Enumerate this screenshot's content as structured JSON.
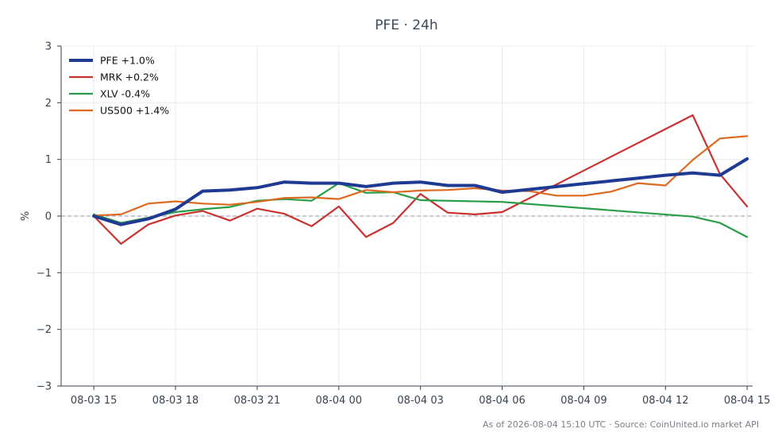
{
  "chart_data": {
    "type": "line",
    "title": "PFE · 24h",
    "ylabel": "%",
    "ylim": [
      -3,
      3
    ],
    "yticks": [
      3,
      2,
      1,
      0,
      -1,
      -2,
      -3
    ],
    "ytick_labels": [
      "3",
      "2",
      "1",
      "0",
      "−1",
      "−2",
      "−3"
    ],
    "xlim": [
      -1.2,
      24.2
    ],
    "xticks": [
      0,
      3,
      6,
      9,
      12,
      15,
      18,
      21,
      24
    ],
    "xtick_labels": [
      "08-03 15",
      "08-03 18",
      "08-03 21",
      "08-04 00",
      "08-04 03",
      "08-04 06",
      "08-04 09",
      "08-04 12",
      "08-04 15"
    ],
    "grid": true,
    "zero_line": true,
    "legend_position": "top-left",
    "footer": "As of 2026-08-04 15:10 UTC · Source: CoinUnited.io market API",
    "series": [
      {
        "name": "PFE +1.0%",
        "color": "#1f3a93",
        "width": 4,
        "x": [
          0,
          1,
          2,
          3,
          4,
          5,
          6,
          7,
          8,
          9,
          10,
          11,
          12,
          13,
          14,
          15,
          16,
          17,
          18,
          19,
          20,
          21,
          22,
          23,
          24
        ],
        "values": [
          0.0,
          -0.15,
          -0.05,
          0.12,
          0.44,
          0.46,
          0.5,
          0.6,
          0.58,
          0.58,
          0.52,
          0.58,
          0.6,
          0.54,
          0.54,
          0.42,
          0.47,
          0.52,
          0.57,
          0.62,
          0.67,
          0.72,
          0.76,
          0.72,
          1.01
        ]
      },
      {
        "name": "MRK +0.2%",
        "color": "#c8322f",
        "width": 2.2,
        "x": [
          0,
          1,
          2,
          3,
          4,
          5,
          6,
          7,
          8,
          9,
          10,
          11,
          12,
          13,
          14,
          15,
          22,
          23,
          24
        ],
        "values": [
          0.0,
          -0.49,
          -0.15,
          0.01,
          0.09,
          -0.08,
          0.13,
          0.04,
          -0.18,
          0.17,
          -0.37,
          -0.12,
          0.39,
          0.06,
          0.03,
          0.07,
          1.78,
          0.74,
          0.17
        ]
      },
      {
        "name": "XLV -0.4%",
        "color": "#2a9d48",
        "width": 2.2,
        "x": [
          0,
          1,
          2,
          3,
          4,
          5,
          6,
          7,
          8,
          9,
          10,
          11,
          12,
          15,
          22,
          23,
          24
        ],
        "values": [
          0.03,
          -0.12,
          -0.03,
          0.07,
          0.12,
          0.16,
          0.27,
          0.3,
          0.27,
          0.58,
          0.41,
          0.42,
          0.28,
          0.25,
          -0.01,
          -0.12,
          -0.37
        ]
      },
      {
        "name": "US500 +1.4%",
        "color": "#de6a21",
        "width": 2.2,
        "x": [
          0,
          1,
          2,
          3,
          4,
          5,
          6,
          7,
          8,
          9,
          10,
          11,
          12,
          13,
          14,
          15,
          16,
          17,
          18,
          19,
          20,
          21,
          22,
          23,
          24
        ],
        "values": [
          0.01,
          0.03,
          0.22,
          0.26,
          0.22,
          0.2,
          0.25,
          0.32,
          0.33,
          0.3,
          0.46,
          0.42,
          0.45,
          0.46,
          0.49,
          0.45,
          0.44,
          0.36,
          0.36,
          0.43,
          0.58,
          0.54,
          0.99,
          1.37,
          1.41
        ]
      }
    ]
  }
}
